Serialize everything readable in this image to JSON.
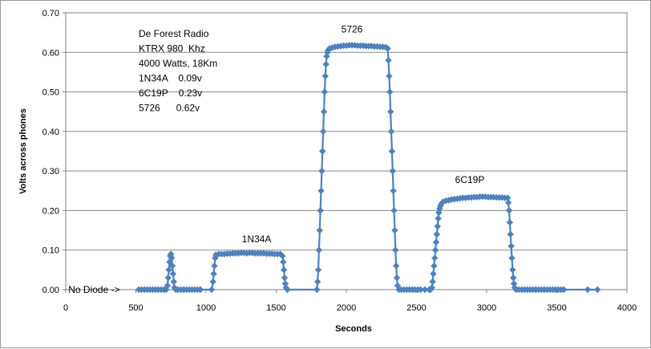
{
  "chart_data": {
    "type": "scatter",
    "title": "",
    "xlabel": "Seconds",
    "ylabel": "Volts across  phones",
    "xlim": [
      0,
      4000
    ],
    "ylim": [
      0,
      0.7
    ],
    "x_ticks": [
      "0",
      "500",
      "1000",
      "1500",
      "2000",
      "2500",
      "3000",
      "3500",
      "4000"
    ],
    "y_ticks": [
      "0.00",
      "0.10",
      "0.20",
      "0.30",
      "0.40",
      "0.50",
      "0.60",
      "0.70"
    ],
    "grid": "horizontal",
    "series_color": "#4F81BD",
    "marker": "diamond",
    "info_lines": [
      "De Forest Radio",
      "KTRX 980  Khz",
      "4000 Watts, 18Km",
      "1N34A    0.09v",
      "6C19P    0.23v",
      "5726      0.62v"
    ],
    "annotations": [
      {
        "text": "No Diode ->",
        "x": 30,
        "y": 0.0
      },
      {
        "text": "1N34A",
        "x": 1360,
        "y": 0.12
      },
      {
        "text": "5726",
        "x": 2040,
        "y": 0.65
      },
      {
        "text": "6C19P",
        "x": 2880,
        "y": 0.27
      }
    ],
    "points": [
      [
        520,
        0
      ],
      [
        540,
        0
      ],
      [
        560,
        0
      ],
      [
        580,
        0
      ],
      [
        600,
        0
      ],
      [
        620,
        0
      ],
      [
        640,
        0
      ],
      [
        660,
        0
      ],
      [
        680,
        0
      ],
      [
        700,
        0
      ],
      [
        715,
        0
      ],
      [
        725,
        0.01
      ],
      [
        730,
        0.03
      ],
      [
        735,
        0.05
      ],
      [
        740,
        0.07
      ],
      [
        745,
        0.085
      ],
      [
        750,
        0.09
      ],
      [
        755,
        0.08
      ],
      [
        760,
        0.06
      ],
      [
        765,
        0.04
      ],
      [
        770,
        0.02
      ],
      [
        775,
        0.005
      ],
      [
        785,
        0
      ],
      [
        800,
        0
      ],
      [
        820,
        0
      ],
      [
        840,
        0
      ],
      [
        860,
        0
      ],
      [
        880,
        0
      ],
      [
        900,
        0
      ],
      [
        920,
        0
      ],
      [
        940,
        0
      ],
      [
        960,
        0
      ],
      [
        1040,
        0
      ],
      [
        1050,
        0.02
      ],
      [
        1055,
        0.04
      ],
      [
        1060,
        0.06
      ],
      [
        1065,
        0.08
      ],
      [
        1070,
        0.088
      ],
      [
        1090,
        0.09
      ],
      [
        1110,
        0.09
      ],
      [
        1130,
        0.09
      ],
      [
        1150,
        0.091
      ],
      [
        1170,
        0.091
      ],
      [
        1190,
        0.092
      ],
      [
        1210,
        0.092
      ],
      [
        1230,
        0.092
      ],
      [
        1250,
        0.093
      ],
      [
        1270,
        0.093
      ],
      [
        1290,
        0.092
      ],
      [
        1310,
        0.093
      ],
      [
        1330,
        0.093
      ],
      [
        1350,
        0.092
      ],
      [
        1370,
        0.092
      ],
      [
        1390,
        0.092
      ],
      [
        1410,
        0.092
      ],
      [
        1430,
        0.091
      ],
      [
        1450,
        0.091
      ],
      [
        1470,
        0.091
      ],
      [
        1490,
        0.09
      ],
      [
        1510,
        0.09
      ],
      [
        1530,
        0.09
      ],
      [
        1545,
        0.085
      ],
      [
        1550,
        0.07
      ],
      [
        1555,
        0.05
      ],
      [
        1560,
        0.03
      ],
      [
        1565,
        0.015
      ],
      [
        1570,
        0.005
      ],
      [
        1580,
        0
      ],
      [
        1790,
        0
      ],
      [
        1795,
        0.02
      ],
      [
        1800,
        0.05
      ],
      [
        1805,
        0.1
      ],
      [
        1810,
        0.15
      ],
      [
        1815,
        0.2
      ],
      [
        1820,
        0.25
      ],
      [
        1825,
        0.3
      ],
      [
        1830,
        0.35
      ],
      [
        1835,
        0.4
      ],
      [
        1840,
        0.45
      ],
      [
        1845,
        0.5
      ],
      [
        1850,
        0.54
      ],
      [
        1855,
        0.57
      ],
      [
        1860,
        0.59
      ],
      [
        1865,
        0.6
      ],
      [
        1870,
        0.605
      ],
      [
        1880,
        0.61
      ],
      [
        1900,
        0.612
      ],
      [
        1920,
        0.614
      ],
      [
        1940,
        0.615
      ],
      [
        1960,
        0.616
      ],
      [
        1980,
        0.617
      ],
      [
        2000,
        0.617
      ],
      [
        2020,
        0.618
      ],
      [
        2040,
        0.618
      ],
      [
        2060,
        0.618
      ],
      [
        2080,
        0.617
      ],
      [
        2100,
        0.617
      ],
      [
        2120,
        0.617
      ],
      [
        2140,
        0.616
      ],
      [
        2160,
        0.616
      ],
      [
        2180,
        0.616
      ],
      [
        2200,
        0.615
      ],
      [
        2220,
        0.615
      ],
      [
        2240,
        0.614
      ],
      [
        2260,
        0.614
      ],
      [
        2280,
        0.613
      ],
      [
        2295,
        0.61
      ],
      [
        2300,
        0.58
      ],
      [
        2305,
        0.54
      ],
      [
        2310,
        0.5
      ],
      [
        2315,
        0.45
      ],
      [
        2320,
        0.4
      ],
      [
        2325,
        0.35
      ],
      [
        2330,
        0.3
      ],
      [
        2335,
        0.25
      ],
      [
        2340,
        0.2
      ],
      [
        2345,
        0.15
      ],
      [
        2350,
        0.1
      ],
      [
        2355,
        0.06
      ],
      [
        2360,
        0.03
      ],
      [
        2365,
        0.01
      ],
      [
        2375,
        0
      ],
      [
        2390,
        0
      ],
      [
        2410,
        0
      ],
      [
        2430,
        0
      ],
      [
        2450,
        0
      ],
      [
        2470,
        0
      ],
      [
        2490,
        0
      ],
      [
        2510,
        0
      ],
      [
        2530,
        0
      ],
      [
        2560,
        0
      ],
      [
        2590,
        0
      ],
      [
        2600,
        0
      ],
      [
        2610,
        0.005
      ],
      [
        2615,
        0.02
      ],
      [
        2620,
        0.04
      ],
      [
        2625,
        0.06
      ],
      [
        2630,
        0.08
      ],
      [
        2635,
        0.1
      ],
      [
        2640,
        0.12
      ],
      [
        2645,
        0.14
      ],
      [
        2650,
        0.16
      ],
      [
        2655,
        0.18
      ],
      [
        2660,
        0.195
      ],
      [
        2665,
        0.205
      ],
      [
        2670,
        0.212
      ],
      [
        2680,
        0.218
      ],
      [
        2690,
        0.222
      ],
      [
        2710,
        0.225
      ],
      [
        2730,
        0.226
      ],
      [
        2750,
        0.228
      ],
      [
        2770,
        0.229
      ],
      [
        2790,
        0.23
      ],
      [
        2810,
        0.231
      ],
      [
        2830,
        0.232
      ],
      [
        2850,
        0.232
      ],
      [
        2870,
        0.233
      ],
      [
        2890,
        0.233
      ],
      [
        2910,
        0.234
      ],
      [
        2930,
        0.234
      ],
      [
        2950,
        0.235
      ],
      [
        2970,
        0.235
      ],
      [
        2990,
        0.235
      ],
      [
        3010,
        0.234
      ],
      [
        3030,
        0.234
      ],
      [
        3050,
        0.234
      ],
      [
        3070,
        0.233
      ],
      [
        3090,
        0.233
      ],
      [
        3110,
        0.233
      ],
      [
        3130,
        0.232
      ],
      [
        3150,
        0.232
      ],
      [
        3155,
        0.22
      ],
      [
        3160,
        0.2
      ],
      [
        3165,
        0.17
      ],
      [
        3170,
        0.14
      ],
      [
        3175,
        0.11
      ],
      [
        3180,
        0.08
      ],
      [
        3185,
        0.05
      ],
      [
        3190,
        0.03
      ],
      [
        3195,
        0.015
      ],
      [
        3200,
        0.005
      ],
      [
        3210,
        0
      ],
      [
        3230,
        0
      ],
      [
        3250,
        0
      ],
      [
        3270,
        0
      ],
      [
        3290,
        0
      ],
      [
        3310,
        0
      ],
      [
        3330,
        0
      ],
      [
        3350,
        0
      ],
      [
        3370,
        0
      ],
      [
        3390,
        0
      ],
      [
        3410,
        0
      ],
      [
        3430,
        0
      ],
      [
        3450,
        0
      ],
      [
        3470,
        0
      ],
      [
        3490,
        0
      ],
      [
        3510,
        0
      ],
      [
        3530,
        0
      ],
      [
        3550,
        0
      ],
      [
        3720,
        0
      ],
      [
        3790,
        0
      ]
    ]
  }
}
